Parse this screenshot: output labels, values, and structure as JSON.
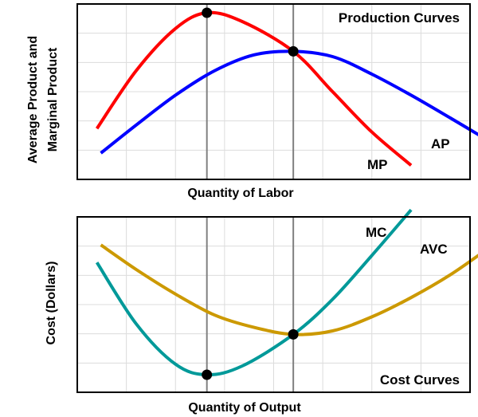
{
  "chart_data": [
    {
      "type": "line",
      "title": "Production Curves",
      "xlabel": "Quantity of Labor",
      "ylabel": "Average Product and Marginal Product",
      "ylabel_lines": [
        "Average Product and",
        "Marginal Product"
      ],
      "grid": true,
      "xlim": [
        0,
        10
      ],
      "ylim": [
        0,
        10
      ],
      "series": [
        {
          "name": "MP",
          "color": "#ff0000",
          "x": [
            0.5,
            1.5,
            2.5,
            3.3,
            4.2,
            5.5,
            6.5,
            7.5,
            8.5
          ],
          "y": [
            2.9,
            6.2,
            8.6,
            9.5,
            9.0,
            7.3,
            5.0,
            2.7,
            0.8
          ]
        },
        {
          "name": "AP",
          "color": "#0000ff",
          "x": [
            0.6,
            1.5,
            2.5,
            3.5,
            4.5,
            5.5,
            6.5,
            7.5,
            8.5,
            9.5,
            10.4
          ],
          "y": [
            1.5,
            3.1,
            4.8,
            6.2,
            7.1,
            7.3,
            7.0,
            6.0,
            4.8,
            3.5,
            2.3
          ]
        }
      ],
      "points": [
        {
          "x": 3.3,
          "y": 9.5
        },
        {
          "x": 5.5,
          "y": 7.3
        }
      ],
      "vlines": [
        3.3,
        5.5
      ]
    },
    {
      "type": "line",
      "title": "Cost Curves",
      "xlabel": "Quantity of Output",
      "ylabel": "Cost (Dollars)",
      "ylabel_lines": [
        "Cost (Dollars)"
      ],
      "grid": true,
      "xlim": [
        0,
        10
      ],
      "ylim": [
        0,
        10
      ],
      "series": [
        {
          "name": "MC",
          "color": "#009999",
          "x": [
            0.5,
            1.5,
            2.5,
            3.3,
            4.2,
            5.5,
            6.5,
            7.5,
            8.5
          ],
          "y": [
            7.4,
            3.9,
            1.6,
            1.0,
            1.5,
            3.3,
            5.3,
            7.8,
            10.4
          ]
        },
        {
          "name": "AVC",
          "color": "#cc9900",
          "x": [
            0.6,
            1.5,
            2.5,
            3.5,
            4.5,
            5.5,
            6.5,
            7.5,
            8.5,
            9.5,
            10.4
          ],
          "y": [
            8.4,
            7.0,
            5.6,
            4.4,
            3.7,
            3.3,
            3.5,
            4.3,
            5.4,
            6.7,
            8.1
          ]
        }
      ],
      "points": [
        {
          "x": 3.3,
          "y": 1.0
        },
        {
          "x": 5.5,
          "y": 3.3
        }
      ],
      "vlines": [
        3.3,
        5.5
      ]
    }
  ]
}
